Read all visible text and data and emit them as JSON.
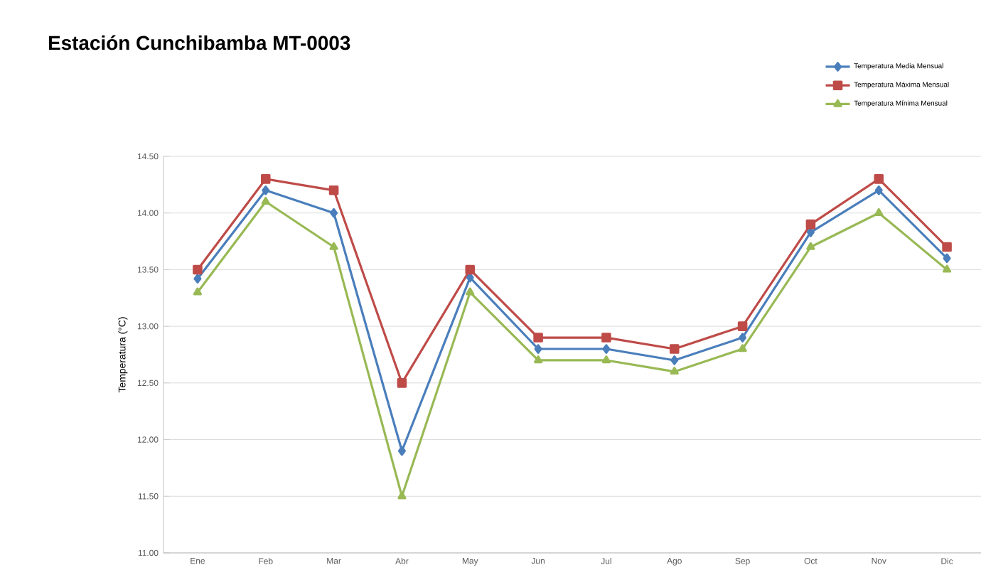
{
  "chart_data": {
    "type": "line",
    "title": "Estación Cunchibamba MT-0003",
    "ylabel": "Temperatura (°C)",
    "categories": [
      "Ene",
      "Feb",
      "Mar",
      "Abr",
      "May",
      "Jun",
      "Jul",
      "Ago",
      "Sep",
      "Oct",
      "Nov",
      "Dic"
    ],
    "series": [
      {
        "name": "Temperatura Media Mensual",
        "color": "#4a7ebb",
        "marker": "diamond",
        "values": [
          13.42,
          14.2,
          14.0,
          11.9,
          13.43,
          12.8,
          12.8,
          12.7,
          12.9,
          13.83,
          14.2,
          13.6
        ]
      },
      {
        "name": "Temperatura Máxima Mensual",
        "color": "#be4b48",
        "marker": "square",
        "values": [
          13.5,
          14.3,
          14.2,
          12.5,
          13.5,
          12.9,
          12.9,
          12.8,
          13.0,
          13.9,
          14.3,
          13.7
        ]
      },
      {
        "name": "Temperatura Mínima Mensual",
        "color": "#98b954",
        "marker": "triangle",
        "values": [
          13.3,
          14.1,
          13.7,
          11.5,
          13.3,
          12.7,
          12.7,
          12.6,
          12.8,
          13.7,
          14.0,
          13.5
        ]
      }
    ],
    "ylim": [
      11.0,
      14.5
    ],
    "yticks": [
      {
        "value": 11.0,
        "label": "11.00"
      },
      {
        "value": 11.5,
        "label": "11.50"
      },
      {
        "value": 12.0,
        "label": "12.00"
      },
      {
        "value": 12.5,
        "label": "12.50"
      },
      {
        "value": 13.0,
        "label": "13.00"
      },
      {
        "value": 13.5,
        "label": "13.50"
      },
      {
        "value": 14.0,
        "label": "14.00"
      },
      {
        "value": 14.5,
        "label": "14.50"
      }
    ],
    "grid": "y",
    "legend": "top right",
    "line_style": "solid"
  }
}
